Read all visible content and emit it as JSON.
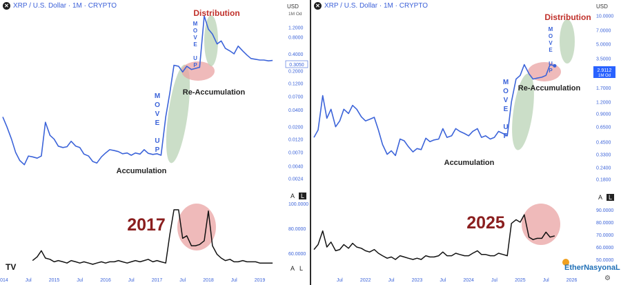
{
  "colors": {
    "price_line": "#3b63d9",
    "volume_line": "#111111",
    "accumulation_fill": "#b9d3b5",
    "reaccumulation_fill": "#eaa3a3",
    "move_up_text": "#3b63d9",
    "distribution_text": "#c0302a",
    "year_label": "#8a1e1e",
    "tick_text": "#3b63d9"
  },
  "panels": [
    {
      "header": {
        "symbol": "XRP / U.S. Dollar · 1M · CRYPTO",
        "currency": "USD"
      },
      "last_price": {
        "value": "0.3050"
      },
      "year_label": "2017",
      "annotations": {
        "distribution": "Distribution",
        "re_accumulation": "Re-Accumulation",
        "accumulation": "Accumulation",
        "move_up_long": "MOVE UP",
        "move_up_short": "MOVE UP"
      },
      "badges": {
        "a": "A",
        "l": "L",
        "a2": "A",
        "l2": "L"
      },
      "brand": "",
      "chart_data": [
        {
          "type": "line",
          "title": "",
          "scale": "log",
          "y_tick_labels": [
            "1M Od",
            "1.2000",
            "0.8000",
            "0.4000",
            "0.2000",
            "0.1200",
            "0.0700",
            "0.0400",
            "0.0200",
            "0.0120",
            "0.0070",
            "0.0040",
            "0.0024"
          ],
          "y_ticks": [
            1.2,
            0.8,
            0.4,
            0.2,
            0.12,
            0.07,
            0.04,
            0.02,
            0.012,
            0.007,
            0.004,
            0.0024
          ],
          "ylim": [
            0.0015,
            2.6
          ],
          "x_tick_labels": [
            "2014",
            "Jul",
            "2015",
            "Jul",
            "2016",
            "Jul",
            "2017",
            "Jul",
            "2018",
            "Jul",
            "2019"
          ],
          "x_ticks": [
            2014.0,
            2014.5,
            2015.0,
            2015.5,
            2016.0,
            2016.5,
            2017.0,
            2017.5,
            2018.0,
            2018.5,
            2019.0
          ],
          "xlim": [
            2014.0,
            2019.45
          ],
          "x": [
            2014.0,
            2014.08,
            2014.17,
            2014.25,
            2014.33,
            2014.42,
            2014.5,
            2014.58,
            2014.67,
            2014.75,
            2014.83,
            2014.92,
            2015.0,
            2015.08,
            2015.17,
            2015.25,
            2015.33,
            2015.42,
            2015.5,
            2015.58,
            2015.67,
            2015.75,
            2015.83,
            2015.92,
            2016.0,
            2016.08,
            2016.17,
            2016.25,
            2016.33,
            2016.42,
            2016.5,
            2016.58,
            2016.67,
            2016.75,
            2016.83,
            2016.92,
            2017.0,
            2017.08,
            2017.17,
            2017.25,
            2017.33,
            2017.42,
            2017.5,
            2017.58,
            2017.67,
            2017.75,
            2017.83,
            2017.92,
            2018.0,
            2018.08,
            2018.17,
            2018.25,
            2018.33,
            2018.42,
            2018.5,
            2018.58,
            2018.67,
            2018.75,
            2018.83,
            2018.92,
            2019.0,
            2019.08,
            2019.17,
            2019.25
          ],
          "series": [
            {
              "values": [
                0.03,
                0.02,
                0.012,
                0.007,
                0.005,
                0.0042,
                0.006,
                0.0058,
                0.0055,
                0.006,
                0.024,
                0.014,
                0.012,
                0.009,
                0.0085,
                0.0088,
                0.011,
                0.009,
                0.0085,
                0.0065,
                0.006,
                0.0048,
                0.0045,
                0.0058,
                0.0068,
                0.0078,
                0.0075,
                0.0072,
                0.0066,
                0.0068,
                0.0062,
                0.0068,
                0.0065,
                0.0078,
                0.0067,
                0.0064,
                0.0066,
                0.0062,
                0.03,
                0.08,
                0.25,
                0.24,
                0.19,
                0.24,
                0.21,
                0.22,
                0.23,
                1.9,
                1.1,
                0.9,
                0.6,
                0.68,
                0.5,
                0.45,
                0.4,
                0.55,
                0.45,
                0.38,
                0.33,
                0.32,
                0.31,
                0.31,
                0.3,
                0.305
              ]
            }
          ],
          "last_value": 0.305
        },
        {
          "type": "line",
          "title": "",
          "y_tick_labels": [
            "100.0000",
            "80.0000",
            "60.0000"
          ],
          "y_ticks": [
            100,
            80,
            60
          ],
          "ylim": [
            46,
            100
          ],
          "x": [
            2014.58,
            2014.67,
            2014.75,
            2014.83,
            2014.92,
            2015.0,
            2015.08,
            2015.17,
            2015.25,
            2015.33,
            2015.42,
            2015.5,
            2015.58,
            2015.67,
            2015.75,
            2015.83,
            2015.92,
            2016.0,
            2016.08,
            2016.17,
            2016.25,
            2016.33,
            2016.42,
            2016.5,
            2016.58,
            2016.67,
            2016.75,
            2016.83,
            2016.92,
            2017.0,
            2017.08,
            2017.17,
            2017.25,
            2017.33,
            2017.42,
            2017.5,
            2017.58,
            2017.67,
            2017.75,
            2017.83,
            2017.92,
            2018.0,
            2018.08,
            2018.17,
            2018.25,
            2018.33,
            2018.42,
            2018.5,
            2018.58,
            2018.67,
            2018.75,
            2018.83,
            2018.92,
            2019.0,
            2019.08,
            2019.17,
            2019.25
          ],
          "series": [
            {
              "values": [
                54,
                57,
                62,
                56,
                55,
                53,
                54,
                53,
                52,
                54,
                53,
                52,
                53,
                52,
                51,
                52,
                53,
                52,
                53,
                53,
                54,
                53,
                52,
                53,
                54,
                53,
                54,
                55,
                53,
                54,
                53,
                52,
                75,
                95,
                95,
                72,
                74,
                66,
                66,
                67,
                70,
                94,
                66,
                59,
                56,
                54,
                55,
                53,
                53,
                54,
                53,
                53,
                53,
                52,
                52,
                52,
                52
              ]
            }
          ]
        }
      ]
    },
    {
      "header": {
        "symbol": "XRP / U.S. Dollar · 1M · CRYPTO",
        "currency": "USD"
      },
      "last_price": {
        "value": "2.9112",
        "sub": "1M Od"
      },
      "year_label": "2025",
      "annotations": {
        "distribution": "Distribution",
        "re_accumulation": "Re-Accumulation",
        "accumulation": "Accumulation",
        "move_up_long": "MOVE UP",
        "move_up_short": "MOVE UP"
      },
      "badges": {
        "a": "A",
        "l": "L"
      },
      "brand": "EtherNasyonaL",
      "chart_data": [
        {
          "type": "line",
          "title": "",
          "scale": "log",
          "y_tick_labels": [
            "10.0000",
            "7.0000",
            "5.0000",
            "3.5000",
            "1.7000",
            "1.2000",
            "0.9000",
            "0.6500",
            "0.4500",
            "0.3300",
            "0.2400",
            "0.1800"
          ],
          "y_ticks": [
            10.0,
            7.0,
            5.0,
            3.5,
            1.7,
            1.2,
            0.9,
            0.65,
            0.45,
            0.33,
            0.24,
            0.18
          ],
          "ylim": [
            0.15,
            12.0
          ],
          "x_tick_labels": [
            "Jul",
            "2022",
            "Jul",
            "2023",
            "Jul",
            "2024",
            "Jul",
            "2025",
            "Jul",
            "2026"
          ],
          "x_ticks": [
            2021.5,
            2022.0,
            2022.5,
            2023.0,
            2023.5,
            2024.0,
            2024.5,
            2025.0,
            2025.5,
            2026.0
          ],
          "xlim": [
            2021.0,
            2026.3
          ],
          "x": [
            2021.0,
            2021.08,
            2021.17,
            2021.25,
            2021.33,
            2021.42,
            2021.5,
            2021.58,
            2021.67,
            2021.75,
            2021.83,
            2021.92,
            2022.0,
            2022.08,
            2022.17,
            2022.25,
            2022.33,
            2022.42,
            2022.5,
            2022.58,
            2022.67,
            2022.75,
            2022.83,
            2022.92,
            2023.0,
            2023.08,
            2023.17,
            2023.25,
            2023.33,
            2023.42,
            2023.5,
            2023.58,
            2023.67,
            2023.75,
            2023.83,
            2023.92,
            2024.0,
            2024.08,
            2024.17,
            2024.25,
            2024.33,
            2024.42,
            2024.5,
            2024.58,
            2024.67,
            2024.75,
            2024.83,
            2024.92,
            2025.0,
            2025.08,
            2025.17,
            2025.25,
            2025.33,
            2025.42,
            2025.5,
            2025.58,
            2025.67
          ],
          "series": [
            {
              "values": [
                0.5,
                0.6,
                1.4,
                0.8,
                1.0,
                0.65,
                0.75,
                1.0,
                0.9,
                1.1,
                1.0,
                0.83,
                0.75,
                0.78,
                0.82,
                0.6,
                0.42,
                0.33,
                0.36,
                0.32,
                0.48,
                0.46,
                0.4,
                0.35,
                0.38,
                0.37,
                0.49,
                0.45,
                0.47,
                0.48,
                0.62,
                0.5,
                0.52,
                0.62,
                0.58,
                0.55,
                0.52,
                0.58,
                0.62,
                0.5,
                0.52,
                0.48,
                0.5,
                0.58,
                0.55,
                0.52,
                1.2,
                2.1,
                2.3,
                3.0,
                2.4,
                2.1,
                2.15,
                2.2,
                2.3,
                3.0,
                2.9112
              ]
            }
          ],
          "last_value": 2.9112
        },
        {
          "type": "line",
          "title": "",
          "y_tick_labels": [
            "90.0000",
            "80.0000",
            "70.0000",
            "60.0000",
            "50.0000"
          ],
          "y_ticks": [
            90,
            80,
            70,
            60,
            50
          ],
          "ylim": [
            45,
            95
          ],
          "x": [
            2021.0,
            2021.08,
            2021.17,
            2021.25,
            2021.33,
            2021.42,
            2021.5,
            2021.58,
            2021.67,
            2021.75,
            2021.83,
            2021.92,
            2022.0,
            2022.08,
            2022.17,
            2022.25,
            2022.33,
            2022.42,
            2022.5,
            2022.58,
            2022.67,
            2022.75,
            2022.83,
            2022.92,
            2023.0,
            2023.08,
            2023.17,
            2023.25,
            2023.33,
            2023.42,
            2023.5,
            2023.58,
            2023.67,
            2023.75,
            2023.83,
            2023.92,
            2024.0,
            2024.08,
            2024.17,
            2024.25,
            2024.33,
            2024.42,
            2024.5,
            2024.58,
            2024.67,
            2024.75,
            2024.83,
            2024.92,
            2025.0,
            2025.08,
            2025.17,
            2025.25,
            2025.33,
            2025.42,
            2025.5,
            2025.58,
            2025.67
          ],
          "series": [
            {
              "values": [
                58,
                62,
                73,
                60,
                64,
                57,
                58,
                62,
                59,
                63,
                60,
                59,
                57,
                56,
                58,
                55,
                53,
                51,
                52,
                50,
                53,
                52,
                51,
                50,
                51,
                50,
                53,
                52,
                52,
                53,
                56,
                53,
                53,
                55,
                54,
                53,
                53,
                55,
                57,
                54,
                54,
                53,
                53,
                55,
                54,
                53,
                79,
                82,
                80,
                86,
                68,
                66,
                67,
                67,
                72,
                68,
                69
              ]
            }
          ]
        }
      ]
    }
  ]
}
